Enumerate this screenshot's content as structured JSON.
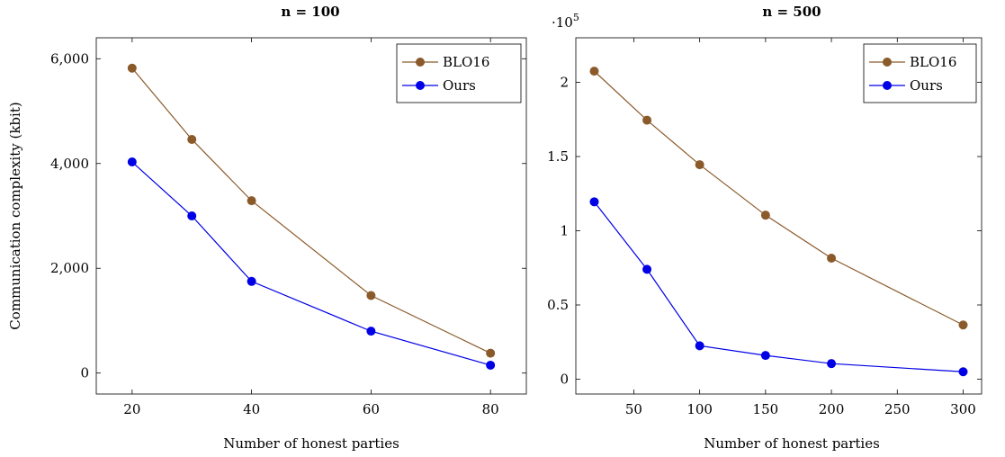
{
  "chart_data": [
    {
      "type": "line",
      "title": "n = 100",
      "xlabel": "Number of honest parties",
      "ylabel": "Communication complexity (kbit)",
      "y_multiplier": "",
      "x": [
        20,
        30,
        40,
        60,
        80
      ],
      "xlim": [
        14,
        86
      ],
      "ylim": [
        -400,
        6400
      ],
      "xticks": [
        20,
        40,
        60,
        80
      ],
      "xtick_labels": [
        "20",
        "40",
        "60",
        "80"
      ],
      "yticks": [
        0,
        2000,
        4000,
        6000
      ],
      "ytick_labels": [
        "0",
        "2,000",
        "4,000",
        "6,000"
      ],
      "legend_position": "top-right",
      "series": [
        {
          "name": "BLO16",
          "color": "#8b5a2b",
          "values": [
            5820,
            4460,
            3290,
            1480,
            380
          ]
        },
        {
          "name": "Ours",
          "color": "#0000e6",
          "values": [
            4030,
            3000,
            1750,
            800,
            150
          ]
        }
      ]
    },
    {
      "type": "line",
      "title": "n = 500",
      "xlabel": "Number of honest parties",
      "ylabel": "",
      "y_multiplier": "·10^5",
      "x": [
        20,
        60,
        100,
        150,
        200,
        300
      ],
      "xlim": [
        6,
        314
      ],
      "ylim": [
        -0.1,
        2.3
      ],
      "xticks": [
        50,
        100,
        150,
        200,
        250,
        300
      ],
      "xtick_labels": [
        "50",
        "100",
        "150",
        "200",
        "250",
        "300"
      ],
      "yticks": [
        0,
        0.5,
        1,
        1.5,
        2
      ],
      "ytick_labels": [
        "0",
        "0.5",
        "1",
        "1.5",
        "2"
      ],
      "legend_position": "top-right",
      "series": [
        {
          "name": "BLO16",
          "color": "#8b5a2b",
          "values": [
            2.075,
            1.745,
            1.445,
            1.105,
            0.815,
            0.365
          ]
        },
        {
          "name": "Ours",
          "color": "#0000e6",
          "values": [
            1.195,
            0.74,
            0.225,
            0.16,
            0.105,
            0.05
          ]
        }
      ]
    }
  ]
}
